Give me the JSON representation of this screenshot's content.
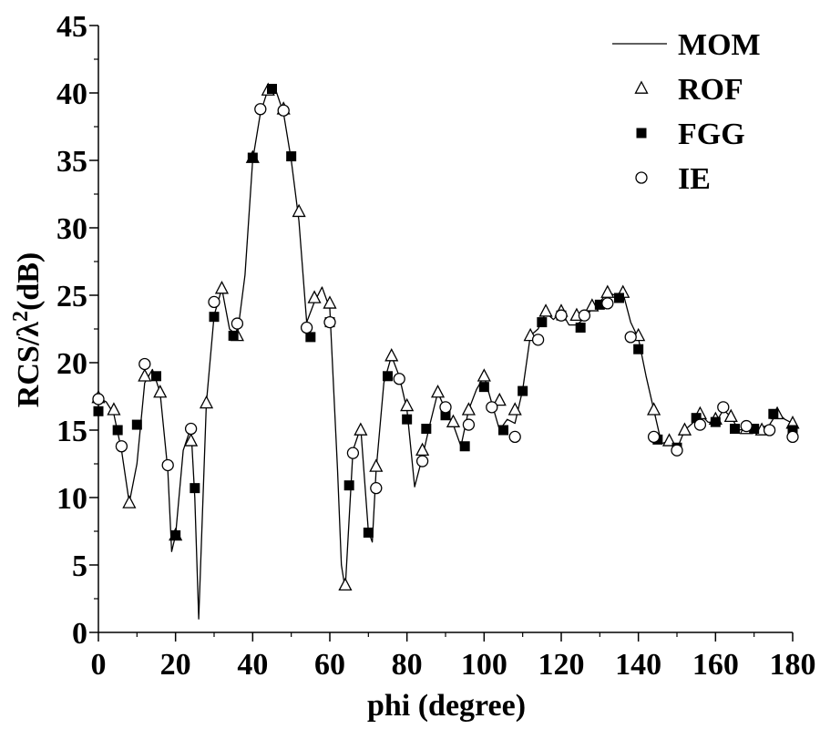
{
  "chart_data": {
    "type": "line",
    "xlabel": "phi (degree)",
    "ylabel_main": "RCS/λ",
    "ylabel_sup": "2",
    "ylabel_tail": "(dB)",
    "xlim": [
      0,
      180
    ],
    "ylim": [
      0,
      45
    ],
    "x_ticks": [
      0,
      20,
      40,
      60,
      80,
      100,
      120,
      140,
      160,
      180
    ],
    "x_tick_labels": [
      "0",
      "20",
      "40",
      "60",
      "80",
      "100",
      "120",
      "140",
      "160",
      "180"
    ],
    "y_ticks": [
      0,
      5,
      10,
      15,
      20,
      25,
      30,
      35,
      40,
      45
    ],
    "y_tick_labels": [
      "0",
      "5",
      "10",
      "15",
      "20",
      "25",
      "30",
      "35",
      "40",
      "45"
    ],
    "grid": false,
    "legend_position": "top-right",
    "series": [
      {
        "name": "MOM",
        "marker": "line",
        "color": "#000000",
        "x": [
          0,
          2,
          4,
          6,
          8,
          10,
          12,
          14,
          16,
          18,
          19,
          20,
          22,
          24,
          25,
          26,
          28,
          30,
          32,
          34,
          36,
          38,
          40,
          42,
          44,
          46,
          48,
          50,
          52,
          54,
          56,
          58,
          60,
          62,
          63,
          64,
          66,
          68,
          70,
          71,
          72,
          74,
          76,
          78,
          80,
          82,
          84,
          86,
          88,
          90,
          92,
          94,
          96,
          98,
          100,
          102,
          104,
          106,
          108,
          110,
          112,
          114,
          116,
          118,
          120,
          122,
          124,
          126,
          128,
          130,
          132,
          134,
          136,
          138,
          140,
          142,
          144,
          146,
          148,
          150,
          152,
          154,
          156,
          158,
          160,
          162,
          164,
          166,
          168,
          170,
          172,
          174,
          176,
          178,
          180
        ],
        "y": [
          17.4,
          17.1,
          16.2,
          13.5,
          9.6,
          12.5,
          18.5,
          19.5,
          17.8,
          12.0,
          6.0,
          7.2,
          13.5,
          15.2,
          10.0,
          1.0,
          17.0,
          23.5,
          25.5,
          22.5,
          22.0,
          26.5,
          35.0,
          38.5,
          40.3,
          40.2,
          38.5,
          35.0,
          30.5,
          23.0,
          24.5,
          25.6,
          24.0,
          12.0,
          5.0,
          3.2,
          13.5,
          15.2,
          7.5,
          6.7,
          12.0,
          18.5,
          20.5,
          19.0,
          16.5,
          10.8,
          13.0,
          15.5,
          17.8,
          16.5,
          15.4,
          13.8,
          16.5,
          18.0,
          19.0,
          17.0,
          15.0,
          15.8,
          15.5,
          18.0,
          22.0,
          22.5,
          23.7,
          23.2,
          23.8,
          22.8,
          22.8,
          23.3,
          24.0,
          24.5,
          25.2,
          25.0,
          25.2,
          23.0,
          21.8,
          19.0,
          16.5,
          14.0,
          14.2,
          13.6,
          15.0,
          15.5,
          16.2,
          15.6,
          15.5,
          16.5,
          16.0,
          15.0,
          15.1,
          15.0,
          15.2,
          15.4,
          16.3,
          15.8,
          15.5
        ]
      },
      {
        "name": "ROF",
        "marker": "triangle-open",
        "color": "#000000",
        "x": [
          0,
          4,
          8,
          12,
          16,
          20,
          24,
          28,
          32,
          36,
          40,
          44,
          48,
          52,
          56,
          60,
          64,
          68,
          72,
          76,
          80,
          84,
          88,
          92,
          96,
          100,
          104,
          108,
          112,
          116,
          120,
          124,
          128,
          132,
          136,
          140,
          144,
          148,
          152,
          156,
          160,
          164,
          168,
          172,
          176,
          180
        ],
        "y": [
          17.4,
          16.5,
          9.6,
          19.0,
          17.8,
          7.2,
          14.2,
          17.0,
          25.5,
          22.0,
          35.2,
          40.2,
          38.8,
          31.2,
          24.8,
          24.4,
          3.5,
          15.0,
          12.3,
          20.5,
          16.8,
          13.5,
          17.8,
          15.6,
          16.5,
          19.0,
          17.2,
          16.5,
          22.0,
          23.8,
          23.8,
          23.5,
          24.2,
          25.2,
          25.2,
          22.0,
          16.5,
          14.2,
          15.0,
          16.2,
          15.8,
          16.0,
          15.1,
          15.0,
          16.2,
          15.5
        ]
      },
      {
        "name": "FGG",
        "marker": "square-filled",
        "color": "#000000",
        "x": [
          0,
          5,
          10,
          15,
          20,
          25,
          30,
          35,
          40,
          45,
          50,
          55,
          60,
          65,
          70,
          75,
          80,
          85,
          90,
          95,
          100,
          105,
          110,
          115,
          120,
          125,
          130,
          135,
          140,
          145,
          150,
          155,
          160,
          165,
          170,
          175,
          180
        ],
        "y": [
          16.4,
          15.0,
          15.4,
          19.0,
          7.2,
          10.7,
          23.4,
          22.0,
          35.2,
          40.3,
          35.3,
          21.9,
          23.0,
          10.9,
          7.4,
          19.0,
          15.8,
          15.1,
          16.1,
          13.8,
          18.2,
          15.0,
          17.9,
          23.0,
          23.5,
          22.6,
          24.3,
          24.8,
          21.0,
          14.3,
          13.7,
          15.9,
          15.6,
          15.1,
          15.1,
          16.2,
          15.0
        ]
      },
      {
        "name": "IE",
        "marker": "circle-open",
        "color": "#000000",
        "x": [
          0,
          6,
          12,
          18,
          24,
          30,
          36,
          42,
          48,
          54,
          60,
          66,
          72,
          78,
          84,
          90,
          96,
          102,
          108,
          114,
          120,
          126,
          132,
          138,
          144,
          150,
          156,
          162,
          168,
          174,
          180
        ],
        "y": [
          17.3,
          13.8,
          19.9,
          12.4,
          15.1,
          24.5,
          22.9,
          38.8,
          38.7,
          22.6,
          23.0,
          13.3,
          10.7,
          18.8,
          12.7,
          16.7,
          15.4,
          16.7,
          14.5,
          21.7,
          23.5,
          23.5,
          24.4,
          21.9,
          14.5,
          13.5,
          15.4,
          16.7,
          15.3,
          15.0,
          14.5
        ]
      }
    ]
  }
}
